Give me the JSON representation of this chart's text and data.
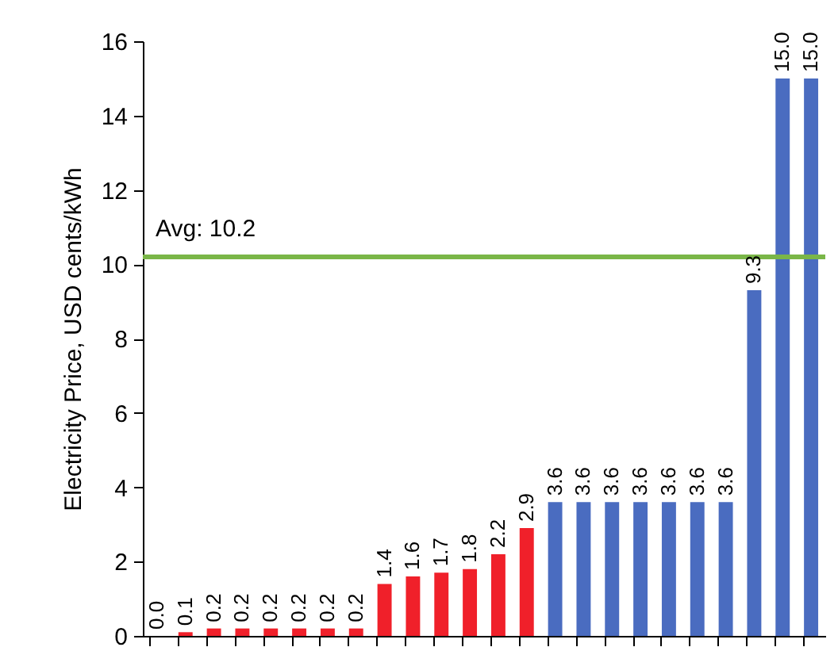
{
  "chart_data": {
    "type": "bar",
    "ylabel": "Electricity Price, USD cents/kWh",
    "categories": [
      null,
      null,
      null,
      null,
      null,
      null,
      null,
      null,
      null,
      null,
      null,
      null,
      null,
      null,
      null,
      null,
      null,
      null,
      null,
      null,
      null,
      null,
      null,
      null
    ],
    "values": [
      0.0,
      0.1,
      0.2,
      0.2,
      0.2,
      0.2,
      0.2,
      0.2,
      1.4,
      1.6,
      1.7,
      1.8,
      2.2,
      2.9,
      3.6,
      3.6,
      3.6,
      3.6,
      3.6,
      3.6,
      3.6,
      9.3,
      15.0,
      15.0
    ],
    "value_labels": [
      "0.0",
      "0.1",
      "0.2",
      "0.2",
      "0.2",
      "0.2",
      "0.2",
      "0.2",
      "1.4",
      "1.6",
      "1.7",
      "1.8",
      "2.2",
      "2.9",
      "3.6",
      "3.6",
      "3.6",
      "3.6",
      "3.6",
      "3.6",
      "3.6",
      "9.3",
      "15.0",
      "15.0"
    ],
    "colors": [
      "#f0202a",
      "#f0202a",
      "#f0202a",
      "#f0202a",
      "#f0202a",
      "#f0202a",
      "#f0202a",
      "#f0202a",
      "#f0202a",
      "#f0202a",
      "#f0202a",
      "#f0202a",
      "#f0202a",
      "#f0202a",
      "#4a6cc0",
      "#4a6cc0",
      "#4a6cc0",
      "#4a6cc0",
      "#4a6cc0",
      "#4a6cc0",
      "#4a6cc0",
      "#4a6cc0",
      "#4a6cc0",
      "#4a6cc0"
    ],
    "ylim": [
      0,
      16
    ],
    "yticks": [
      0,
      2,
      4,
      6,
      8,
      10,
      12,
      14,
      16
    ],
    "ref_lines": [
      {
        "axis": "y",
        "value": 10.2,
        "label": "Avg: 10.2",
        "color": "#7ab648"
      }
    ],
    "tick_labels": "y",
    "grid": false
  }
}
